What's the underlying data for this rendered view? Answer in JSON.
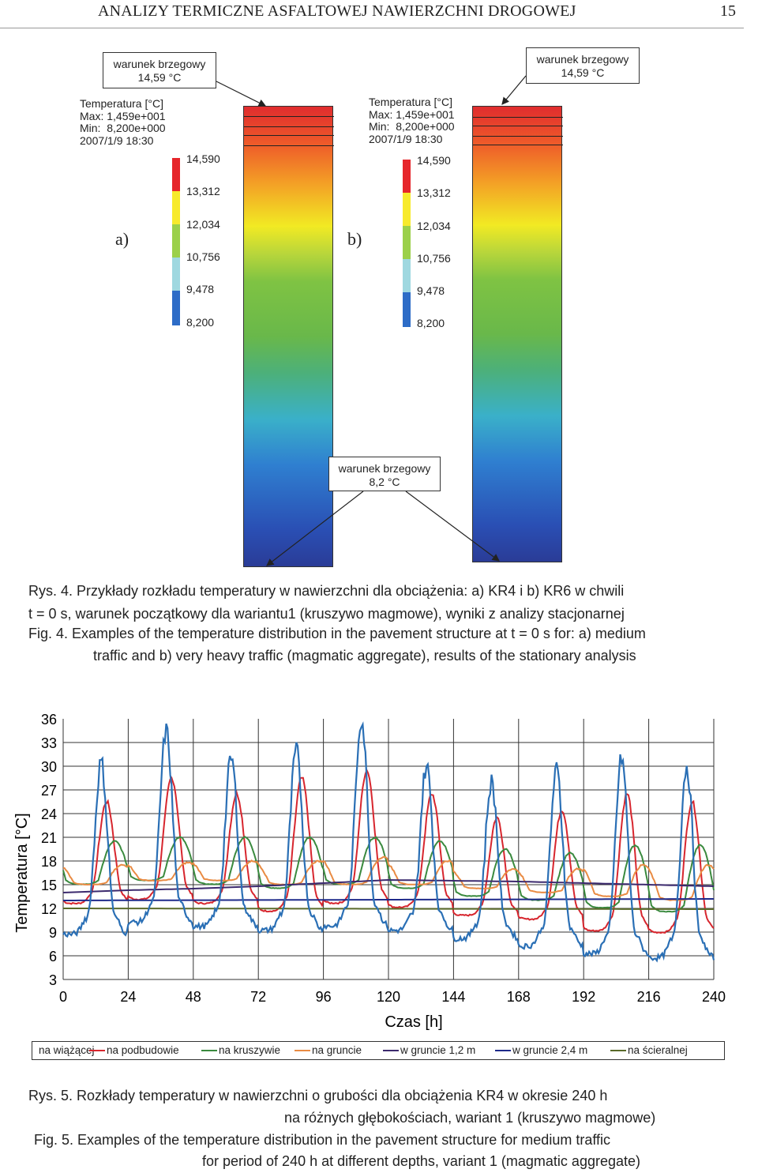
{
  "header": {
    "running_title": "ANALIZY TERMICZNE ASFALTOWEJ NAWIERZCHNI DROGOWEJ",
    "page_number": "15"
  },
  "figure4": {
    "bc_top_a": [
      "warunek brzegowy",
      "14,59 °C"
    ],
    "bc_top_b": [
      "warunek brzegowy",
      "14,59 °C"
    ],
    "bc_bottom": [
      "warunek brzegowy",
      "8,2 °C"
    ],
    "info_a": "Temperatura [°C]\nMax: 1,459e+001\nMin:  8,200e+000\n2007/1/9 18:30",
    "info_b": "Temperatura [°C]\nMax: 1,459e+001\nMin:  8,200e+000\n2007/1/9 18:30",
    "label_a": "a)",
    "label_b": "b)",
    "scale_ticks": [
      "14,590",
      "13,312",
      "12,034",
      "10,756",
      "9,478",
      "8,200"
    ],
    "scale_colors": [
      "#e6262b",
      "#f7ea2c",
      "#9bd04a",
      "#9fd8e0",
      "#2d6cc7"
    ],
    "caption_pl_1": "Rys. 4. Przykłady rozkładu temperatury w nawierzchni dla obciążenia: a) KR4 i b) KR6 w chwili",
    "caption_pl_2": "t = 0 s, warunek początkowy dla wariantu1 (kruszywo magmowe), wyniki z analizy stacjonarnej",
    "caption_en_1": "Fig. 4. Examples of the temperature distribution in the pavement structure at t = 0 s for: a) medium",
    "caption_en_2": "traffic and b) very heavy traffic (magmatic aggregate), results of the stationary analysis"
  },
  "chart_data": {
    "type": "line",
    "xlabel": "Czas [h]",
    "ylabel": "Temperatura [°C]",
    "xlim": [
      0,
      240
    ],
    "ylim": [
      3,
      36
    ],
    "xticks": [
      0,
      24,
      48,
      72,
      96,
      120,
      144,
      168,
      192,
      216,
      240
    ],
    "yticks": [
      36,
      33,
      30,
      27,
      24,
      21,
      18,
      15,
      12,
      9,
      6,
      3
    ],
    "grid": "vertical lines at x ticks, horizontal lines at y ticks below 36",
    "legend_position": "bottom",
    "series": [
      {
        "name": "na wiążącej",
        "color": "#d7262e",
        "daily_peaks": [
          25.5,
          28.5,
          26.5,
          28.5,
          29.5,
          26.5,
          23.5,
          24.5,
          26.5,
          25.5
        ],
        "daily_mins": [
          12.5,
          13.0,
          12.5,
          11.5,
          12.5,
          12.0,
          11.0,
          10.5,
          9.0,
          8.8
        ],
        "end_value": 8.8
      },
      {
        "name": "na podbudowie",
        "color": "#3a8a3e",
        "daily_peaks": [
          20.5,
          21.0,
          21.0,
          21.0,
          21.0,
          20.5,
          19.5,
          19.0,
          20.0,
          20.0
        ],
        "daily_mins": [
          15.0,
          15.5,
          15.0,
          14.5,
          15.0,
          14.5,
          13.5,
          13.0,
          12.0,
          11.5
        ],
        "end_value": 11.5
      },
      {
        "name": "na kruszywie",
        "color": "#e98b43",
        "daily_peaks": [
          17.5,
          17.8,
          18.0,
          18.0,
          18.5,
          18.0,
          17.0,
          17.0,
          17.5,
          17.5
        ],
        "daily_mins": [
          15.0,
          15.5,
          15.5,
          15.0,
          15.0,
          15.0,
          14.5,
          14.0,
          13.5,
          13.0
        ],
        "end_value": 13.5
      },
      {
        "name": "na gruncie",
        "color": "#3c2a6e",
        "values_x": [
          0,
          24,
          48,
          72,
          96,
          120,
          144,
          168,
          192,
          216,
          240
        ],
        "values": [
          14.0,
          14.3,
          14.5,
          14.8,
          15.2,
          15.6,
          15.5,
          15.4,
          15.2,
          15.0,
          14.8
        ]
      },
      {
        "name": "w gruncie 1,2 m",
        "color": "#1e2a8a",
        "values_x": [
          0,
          240
        ],
        "values": [
          13.0,
          13.2
        ]
      },
      {
        "name": "w gruncie 2,4 m",
        "color": "#5a6a2a",
        "values_x": [
          0,
          240
        ],
        "values": [
          12.0,
          11.9
        ]
      },
      {
        "name": "na ścieralnej",
        "color": "#2a6fb5",
        "daily_peaks": [
          30.5,
          34.5,
          31.0,
          32.0,
          36.0,
          30.0,
          28.0,
          29.5,
          31.0,
          30.0
        ],
        "daily_mins": [
          8.5,
          10.0,
          9.5,
          9.0,
          9.5,
          9.0,
          8.0,
          7.0,
          6.0,
          5.5
        ],
        "end_value": 7.0
      }
    ]
  },
  "figure5": {
    "caption_pl_1": "Rys. 5. Rozkłady temperatury w nawierzchni o grubości dla obciążenia KR4 w okresie 240 h",
    "caption_pl_2": "na różnych głębokościach, wariant 1 (kruszywo magmowe)",
    "caption_en_1": "Fig. 5. Examples of the temperature distribution in the pavement structure for medium traffic",
    "caption_en_2": "for period of 240 h at different depths, variant 1 (magmatic aggregate)"
  }
}
